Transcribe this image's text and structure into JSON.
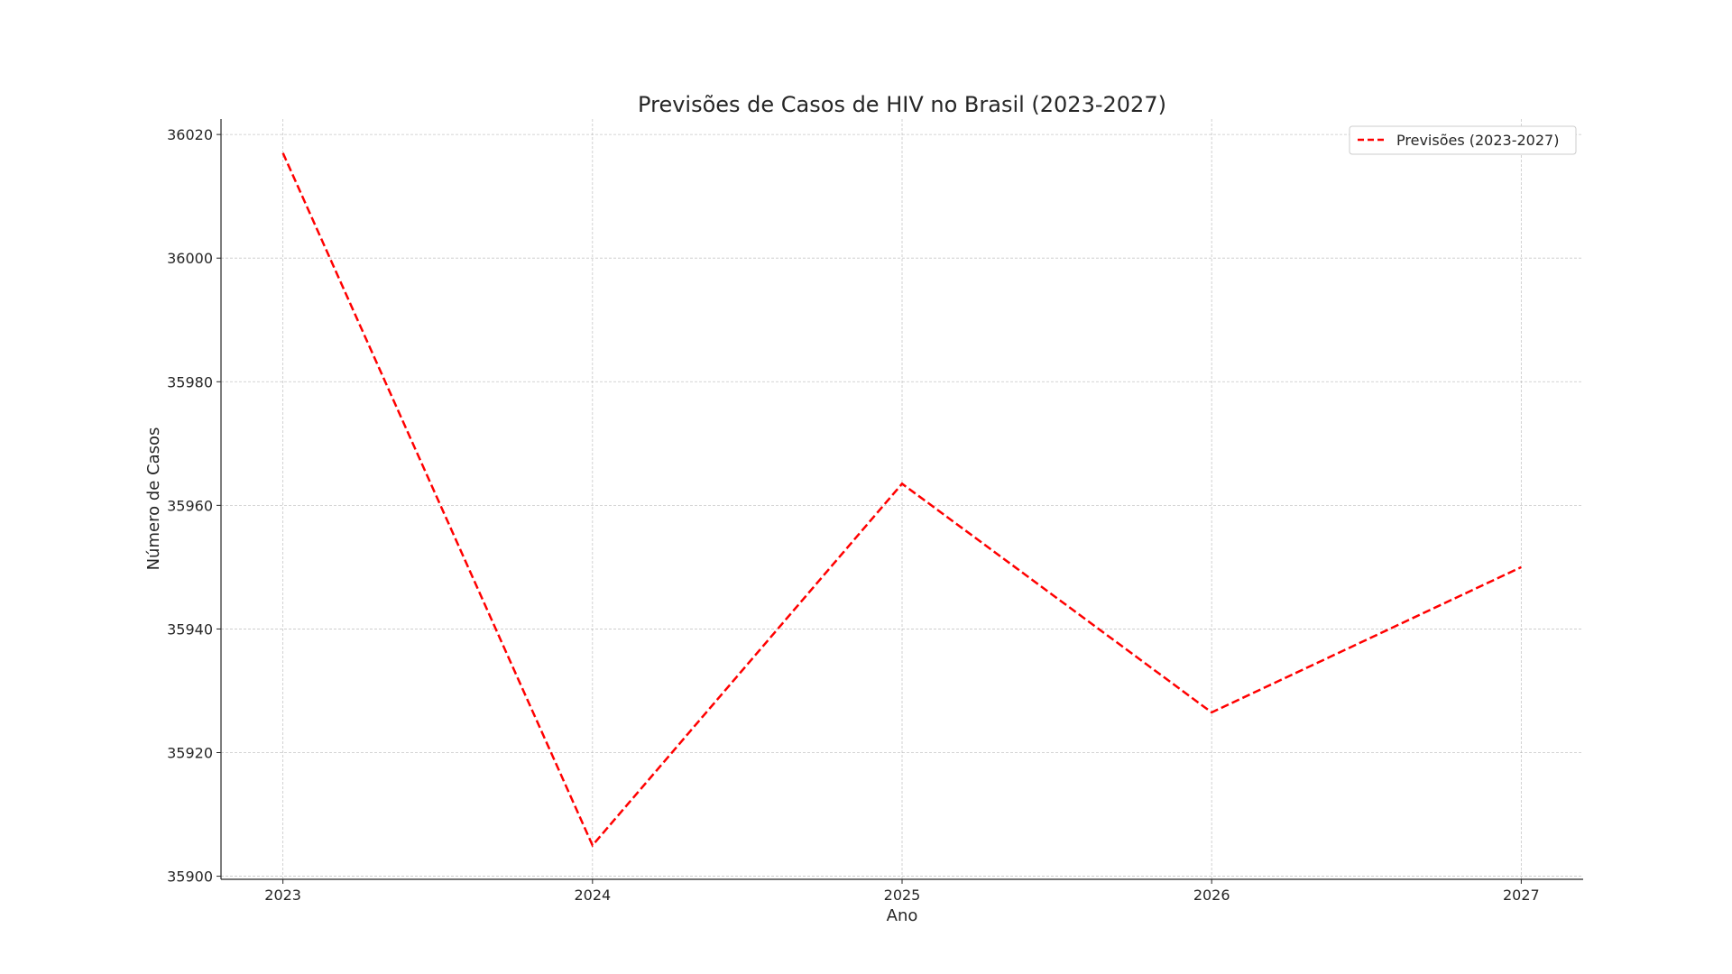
{
  "chart_data": {
    "type": "line",
    "title": "Previsões de Casos de HIV no Brasil (2023-2027)",
    "xlabel": "Ano",
    "ylabel": "Número de Casos",
    "x": [
      2023,
      2024,
      2025,
      2026,
      2027
    ],
    "x_tick_labels": [
      "2023",
      "2024",
      "2025",
      "2026",
      "2027"
    ],
    "xlim": [
      2022.8,
      2027.2
    ],
    "y_ticks": [
      35900,
      35920,
      35940,
      35960,
      35980,
      36000,
      36020
    ],
    "y_tick_labels": [
      "35900",
      "35920",
      "35940",
      "35960",
      "35980",
      "36000",
      "36020"
    ],
    "ylim": [
      35899.5,
      36022.5
    ],
    "grid": true,
    "legend_position": "top-right",
    "series": [
      {
        "name": "Previsões (2023-2027)",
        "color": "#ff0000",
        "line_style": "dashed",
        "values": [
          36017,
          35905,
          35963.5,
          35926.5,
          35950
        ]
      }
    ]
  }
}
